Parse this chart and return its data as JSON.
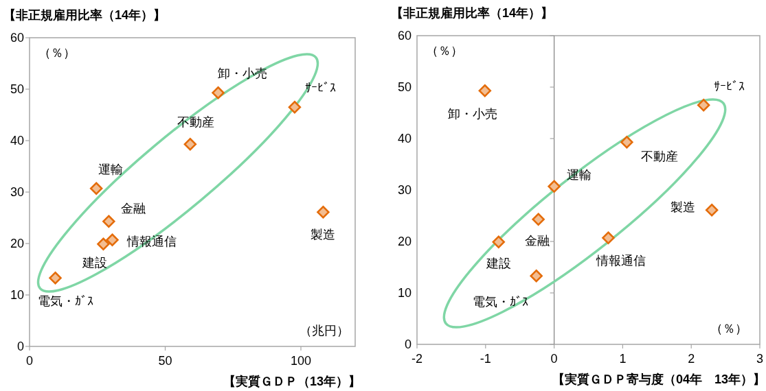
{
  "chart_data": [
    {
      "type": "scatter",
      "ylabel": "【非正規雇用比率（14年）】",
      "xlabel": "【実質ＧＤＰ（13年）】",
      "annotations": [
        "（％）",
        "（兆円）"
      ],
      "xlim": [
        0,
        120
      ],
      "ylim": [
        0,
        60
      ],
      "xticks": [
        0,
        50,
        100
      ],
      "yticks": [
        0,
        10,
        20,
        30,
        40,
        50,
        60
      ],
      "marker": "diamond",
      "grid": false,
      "series": [
        {
          "name": "電気・ｶﾞｽ",
          "color": "#e46c0a",
          "x": [
            9.5
          ],
          "values": [
            13.3
          ]
        },
        {
          "name": "建設",
          "color": "#e46c0a",
          "x": [
            27.2
          ],
          "values": [
            19.9
          ]
        },
        {
          "name": "情報通信",
          "color": "#e46c0a",
          "x": [
            30.5
          ],
          "values": [
            20.7
          ]
        },
        {
          "name": "金融",
          "color": "#e46c0a",
          "x": [
            29.2
          ],
          "values": [
            24.3
          ]
        },
        {
          "name": "運輸",
          "color": "#e46c0a",
          "x": [
            24.6
          ],
          "values": [
            30.7
          ]
        },
        {
          "name": "不動産",
          "color": "#e46c0a",
          "x": [
            59.2
          ],
          "values": [
            39.3
          ]
        },
        {
          "name": "卸・小売",
          "color": "#e46c0a",
          "x": [
            69.5
          ],
          "values": [
            49.3
          ]
        },
        {
          "name": "ｻｰﾋﾞｽ",
          "color": "#e46c0a",
          "x": [
            97.7
          ],
          "values": [
            46.5
          ]
        },
        {
          "name": "製造",
          "color": "#e46c0a",
          "x": [
            108.2
          ],
          "values": [
            26.1
          ]
        }
      ]
    },
    {
      "type": "scatter",
      "ylabel": "【非正規雇用比率（14年）】",
      "xlabel": "【実質ＧＤＰ寄与度（04年　13年）】",
      "annotations": [
        "（％）",
        "（％）"
      ],
      "xlim": [
        -2,
        3
      ],
      "ylim": [
        0,
        60
      ],
      "xticks": [
        -2,
        -1,
        0,
        1,
        2,
        3
      ],
      "yticks": [
        0,
        10,
        20,
        30,
        40,
        50,
        60
      ],
      "marker": "diamond",
      "grid": false,
      "ref_lines": [
        {
          "axis": "x",
          "value": 0
        }
      ],
      "series": [
        {
          "name": "電気・ｶﾞｽ",
          "color": "#e46c0a",
          "x": [
            -0.26
          ],
          "values": [
            13.3
          ]
        },
        {
          "name": "建設",
          "color": "#e46c0a",
          "x": [
            -0.81
          ],
          "values": [
            19.9
          ]
        },
        {
          "name": "情報通信",
          "color": "#e46c0a",
          "x": [
            0.79
          ],
          "values": [
            20.7
          ]
        },
        {
          "name": "金融",
          "color": "#e46c0a",
          "x": [
            -0.23
          ],
          "values": [
            24.3
          ]
        },
        {
          "name": "運輸",
          "color": "#e46c0a",
          "x": [
            0.0
          ],
          "values": [
            30.7
          ]
        },
        {
          "name": "不動産",
          "color": "#e46c0a",
          "x": [
            1.06
          ],
          "values": [
            39.3
          ]
        },
        {
          "name": "卸・小売",
          "color": "#e46c0a",
          "x": [
            -1.01
          ],
          "values": [
            49.3
          ]
        },
        {
          "name": "ｻｰﾋﾞｽ",
          "color": "#e46c0a",
          "x": [
            2.18
          ],
          "values": [
            46.5
          ]
        },
        {
          "name": "製造",
          "color": "#e46c0a",
          "x": [
            2.3
          ],
          "values": [
            26.1
          ]
        }
      ]
    }
  ]
}
